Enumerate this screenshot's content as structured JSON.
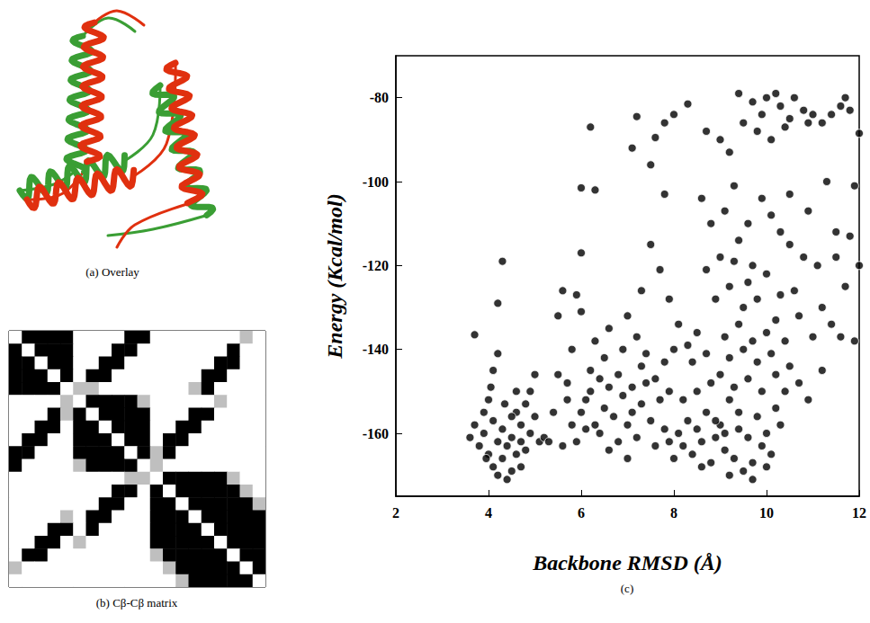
{
  "overlay": {
    "caption": "(a) Overlay",
    "colors": [
      "#3a9e34",
      "#e0300f"
    ]
  },
  "chart_data": [
    {
      "type": "heatmap",
      "caption": "(b) Cβ-Cβ matrix",
      "tick_labels": false,
      "cells": [
        [
          0,
          1,
          1,
          1,
          1,
          0,
          0,
          0,
          0,
          1,
          1,
          0,
          0,
          0,
          0,
          0,
          0,
          0,
          0.5,
          0
        ],
        [
          1,
          0,
          1,
          1,
          1,
          0,
          0,
          0,
          1,
          1,
          0,
          0,
          0,
          0,
          0,
          0,
          0,
          1,
          0,
          0
        ],
        [
          1,
          1,
          0,
          1,
          1,
          0,
          0,
          1,
          1,
          0,
          0,
          0,
          0,
          0,
          0,
          0,
          1,
          1,
          0,
          0
        ],
        [
          1,
          1,
          1,
          0,
          1,
          0,
          1,
          1,
          0,
          0,
          0,
          0,
          0,
          0,
          0,
          1,
          1,
          0,
          0,
          0
        ],
        [
          1,
          1,
          1,
          1,
          0,
          0.5,
          0.5,
          0,
          0,
          0,
          0,
          0,
          0,
          0,
          0.5,
          1,
          0,
          0,
          0,
          0
        ],
        [
          0,
          0,
          0,
          0,
          0.5,
          0,
          1,
          1,
          1,
          1,
          0.5,
          0,
          0,
          0,
          0,
          0,
          0.5,
          0,
          0,
          0
        ],
        [
          0,
          0,
          0,
          1,
          0.5,
          1,
          0,
          1,
          1,
          1,
          1,
          0,
          0,
          0,
          1,
          1,
          0,
          0,
          0,
          0
        ],
        [
          0,
          0,
          1,
          1,
          0,
          1,
          1,
          0,
          1,
          1,
          1,
          0,
          0,
          1,
          1,
          0,
          0,
          0,
          0,
          0
        ],
        [
          0,
          1,
          1,
          0,
          0,
          1,
          1,
          1,
          0,
          1,
          1,
          0,
          1,
          1,
          0,
          0,
          0,
          0,
          0,
          0
        ],
        [
          1,
          1,
          0,
          0,
          0,
          1,
          1,
          1,
          1,
          0,
          1,
          0.5,
          1,
          0,
          0,
          0,
          0,
          0,
          0,
          0
        ],
        [
          1,
          0,
          0,
          0,
          0,
          0.5,
          1,
          1,
          1,
          1,
          0,
          0.5,
          0,
          0,
          0,
          0,
          0,
          0,
          0,
          0
        ],
        [
          0,
          0,
          0,
          0,
          0,
          0,
          0,
          0,
          0,
          0.5,
          0.5,
          0,
          1,
          1,
          1,
          1,
          1,
          0.5,
          0,
          0
        ],
        [
          0,
          0,
          0,
          0,
          0,
          0,
          0,
          0,
          1,
          1,
          0,
          1,
          0,
          1,
          1,
          1,
          1,
          1,
          0.5,
          0
        ],
        [
          0,
          0,
          0,
          0,
          0,
          0,
          0,
          1,
          1,
          0,
          0,
          1,
          1,
          0,
          1,
          1,
          1,
          1,
          1,
          0.5
        ],
        [
          0,
          0,
          0,
          0,
          0.5,
          0,
          1,
          1,
          0,
          0,
          0,
          1,
          1,
          1,
          0,
          1,
          1,
          1,
          1,
          1
        ],
        [
          0,
          0,
          0,
          1,
          1,
          0,
          1,
          0,
          0,
          0,
          0,
          1,
          1,
          1,
          1,
          0,
          1,
          1,
          1,
          1
        ],
        [
          0,
          0,
          1,
          1,
          0,
          0.5,
          0,
          0,
          0,
          0,
          0,
          1,
          1,
          1,
          1,
          1,
          0,
          1,
          1,
          1
        ],
        [
          0,
          1,
          1,
          0,
          0,
          0,
          0,
          0,
          0,
          0,
          0,
          0.5,
          1,
          1,
          1,
          1,
          1,
          0,
          1,
          1
        ],
        [
          0.5,
          0,
          0,
          0,
          0,
          0,
          0,
          0,
          0,
          0,
          0,
          0,
          0.5,
          1,
          1,
          1,
          1,
          1,
          0,
          1
        ],
        [
          0,
          0,
          0,
          0,
          0,
          0,
          0,
          0,
          0,
          0,
          0,
          0,
          0,
          0.5,
          1,
          1,
          1,
          1,
          1,
          0
        ]
      ]
    },
    {
      "type": "scatter",
      "caption": "(c)",
      "x_label": "Backbone RMSD (Å)",
      "y_label": "Energy (Kcal/mol)",
      "xlim": [
        2,
        12
      ],
      "xticks": [
        2,
        4,
        6,
        8,
        10,
        12
      ],
      "ylim": [
        -175,
        -70
      ],
      "yticks": [
        -160,
        -140,
        -120,
        -100,
        -80
      ],
      "grid": false,
      "marker": "circle",
      "color": "#000000",
      "x": [
        3.6,
        3.7,
        3.8,
        3.9,
        4.0,
        4.1,
        4.2,
        4.3,
        4.4,
        4.5,
        3.9,
        4.0,
        4.1,
        4.2,
        4.3,
        4.4,
        4.5,
        4.6,
        4.7,
        4.8,
        4.6,
        4.7,
        4.8,
        4.9,
        5.0,
        5.1,
        4.6,
        4.9,
        5.0,
        5.2,
        3.7,
        4.3,
        4.2,
        4.2,
        4.1,
        4.05,
        3.95,
        4.35,
        4.5,
        4.7,
        5.3,
        5.4,
        5.5,
        5.7,
        5.8,
        5.9,
        6.0,
        6.1,
        6.2,
        6.3,
        6.4,
        6.5,
        6.6,
        6.7,
        6.8,
        6.9,
        7.0,
        7.1,
        7.2,
        7.3,
        7.4,
        7.5,
        7.6,
        7.7,
        7.8,
        7.9,
        6.2,
        6.5,
        6.8,
        7.1,
        7.3,
        7.6,
        7.9,
        6.1,
        6.6,
        7.0,
        5.6,
        5.8,
        5.5,
        5.7,
        8.0,
        8.1,
        8.2,
        8.3,
        8.4,
        8.5,
        8.6,
        8.7,
        8.8,
        8.9,
        9.0,
        9.1,
        9.2,
        9.3,
        9.4,
        9.5,
        9.6,
        9.7,
        9.8,
        9.9,
        10.0,
        10.1,
        10.2,
        10.3,
        10.4,
        8.5,
        8.8,
        9.0,
        9.3,
        9.6,
        9.9,
        10.2,
        8.2,
        8.6,
        9.2,
        9.7,
        9.4,
        9.1,
        8.9,
        10.0,
        8.4,
        8.7,
        9.2,
        9.5,
        9.8,
        10.1,
        10.5,
        10.7,
        10.9,
        11.2,
        6.3,
        6.6,
        7.0,
        7.3,
        7.5,
        7.7,
        7.9,
        8.1,
        8.3,
        8.5,
        8.6,
        8.8,
        9.0,
        9.2,
        9.4,
        9.5,
        9.7,
        9.8,
        10.0,
        10.2,
        10.3,
        10.5,
        10.6,
        10.8,
        11.0,
        11.2,
        11.5,
        11.7,
        11.9,
        11.6,
        8.7,
        9.1,
        9.3,
        9.6,
        9.9,
        10.1,
        10.4,
        10.7,
        11.1,
        11.4,
        6.0,
        6.3,
        6.2,
        7.1,
        7.2,
        7.6,
        7.5,
        7.8,
        8.0,
        8.3,
        5.9,
        6.0,
        6.0,
        5.6,
        7.8,
        8.7,
        9.0,
        9.2,
        11.3,
        12.0,
        9.4,
        9.7,
        9.9,
        10.0,
        10.2,
        10.3,
        10.5,
        10.6,
        10.8,
        11.0,
        11.2,
        11.4,
        11.6,
        11.7,
        11.8,
        9.5,
        9.8,
        10.1,
        10.4,
        10.9,
        9.1,
        9.4,
        9.7,
        10.0,
        10.3,
        8.9,
        9.3,
        9.6,
        10.5,
        10.9,
        7.2,
        7.4,
        7.8,
        8.0,
        6.9,
        6.4,
        11.8,
        11.9,
        12.0,
        11.5
      ],
      "values": [
        -161,
        -158,
        -163,
        -160,
        -165,
        -168,
        -170,
        -166,
        -171,
        -169,
        -155,
        -152,
        -157,
        -162,
        -159,
        -163,
        -161,
        -165,
        -168,
        -164,
        -155,
        -158,
        -153,
        -160,
        -156,
        -162,
        -150,
        -150,
        -146,
        -161,
        -136.5,
        -119,
        -129,
        -141,
        -145,
        -149,
        -166,
        -153,
        -156,
        -162,
        -162,
        -155,
        -146,
        -148,
        -158,
        -162,
        -155,
        -152,
        -150,
        -158,
        -160,
        -154,
        -149,
        -156,
        -162,
        -151,
        -158,
        -155,
        -161,
        -153,
        -148,
        -157,
        -163,
        -152,
        -159,
        -162,
        -145,
        -142,
        -146,
        -149,
        -144,
        -147,
        -150,
        -159,
        -164,
        -166,
        -163,
        -140,
        -132,
        -152,
        -166,
        -160,
        -163,
        -157,
        -165,
        -159,
        -162,
        -155,
        -167,
        -161,
        -158,
        -164,
        -152,
        -166,
        -159,
        -169,
        -161,
        -167,
        -156,
        -163,
        -160,
        -165,
        -154,
        -158,
        -150,
        -150,
        -148,
        -146,
        -149,
        -147,
        -150,
        -146,
        -152,
        -168,
        -170,
        -171,
        -155,
        -160,
        -157,
        -168,
        -143,
        -141,
        -142,
        -140,
        -143,
        -141,
        -144,
        -148,
        -152,
        -145,
        -138,
        -135,
        -132,
        -126,
        -115,
        -121,
        -128,
        -134,
        -139,
        -136,
        -104,
        -110,
        -118,
        -125,
        -114,
        -130,
        -120,
        -128,
        -122,
        -133,
        -112,
        -103,
        -126,
        -118,
        -137,
        -130,
        -112,
        -125,
        -101,
        -137,
        -121,
        -107,
        -101,
        -110,
        -104,
        -108,
        -138,
        -132,
        -120,
        -134,
        -101.5,
        -102,
        -87,
        -92,
        -84.5,
        -89.5,
        -96,
        -86,
        -84,
        -81.5,
        -127,
        -131,
        -117,
        -126,
        -103,
        -88,
        -90,
        -93,
        -100,
        -88.5,
        -79,
        -81,
        -84,
        -80,
        -79,
        -82,
        -85,
        -80,
        -83,
        -84,
        -86,
        -84,
        -82,
        -80,
        -83,
        -86,
        -88,
        -90,
        -87,
        -86,
        -137,
        -134,
        -138,
        -136,
        -127,
        -128,
        -119,
        -124,
        -115,
        -107,
        -137,
        -141,
        -143,
        -140,
        -140,
        -147,
        -113,
        -138,
        -120,
        -118
      ]
    }
  ]
}
